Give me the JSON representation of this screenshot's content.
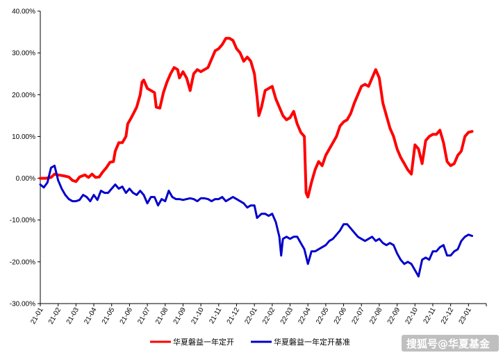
{
  "chart_data": {
    "type": "line",
    "ylim": [
      -30,
      40
    ],
    "yticks": [
      -30,
      -20,
      -10,
      0,
      10,
      20,
      30,
      40
    ],
    "ytick_labels": [
      "-30.00%",
      "-20.00%",
      "-10.00%",
      "0.00%",
      "10.00%",
      "20.00%",
      "30.00%",
      "40.00%"
    ],
    "x_tick_labels": [
      "21-01",
      "21-02",
      "21-03",
      "21-04",
      "21-05",
      "21-06",
      "21-07",
      "21-08",
      "21-09",
      "21-10",
      "21-11",
      "21-12",
      "22-01",
      "22-02",
      "22-03",
      "22-04",
      "22-05",
      "22-06",
      "22-07",
      "22-08",
      "22-09",
      "22-10",
      "22-11",
      "22-12",
      "23-01"
    ],
    "grid": false,
    "legend_position": "bottom",
    "series": [
      {
        "name": "华夏磐益一年定开",
        "color": "#ff0000",
        "points": [
          [
            0,
            0
          ],
          [
            0.3,
            0
          ],
          [
            0.6,
            0.2
          ],
          [
            0.8,
            1.0
          ],
          [
            1.0,
            0.8
          ],
          [
            1.3,
            0.6
          ],
          [
            1.6,
            0.3
          ],
          [
            1.8,
            -0.5
          ],
          [
            2.0,
            -0.8
          ],
          [
            2.2,
            0.3
          ],
          [
            2.5,
            0.8
          ],
          [
            2.7,
            0.2
          ],
          [
            2.9,
            1.0
          ],
          [
            3.1,
            0.2
          ],
          [
            3.3,
            0.3
          ],
          [
            3.5,
            1.5
          ],
          [
            3.7,
            2.5
          ],
          [
            3.9,
            3.8
          ],
          [
            4.1,
            4.0
          ],
          [
            4.2,
            6.5
          ],
          [
            4.4,
            8.5
          ],
          [
            4.6,
            8.5
          ],
          [
            4.8,
            10.0
          ],
          [
            4.9,
            13.0
          ],
          [
            5.1,
            14.5
          ],
          [
            5.4,
            17.0
          ],
          [
            5.6,
            20.0
          ],
          [
            5.7,
            23.0
          ],
          [
            5.8,
            23.5
          ],
          [
            6.0,
            21.5
          ],
          [
            6.2,
            21.0
          ],
          [
            6.4,
            20.5
          ],
          [
            6.5,
            17.0
          ],
          [
            6.7,
            16.8
          ],
          [
            6.9,
            20.5
          ],
          [
            7.1,
            23.0
          ],
          [
            7.3,
            25.0
          ],
          [
            7.5,
            26.5
          ],
          [
            7.7,
            26.0
          ],
          [
            7.8,
            24.0
          ],
          [
            8.0,
            25.5
          ],
          [
            8.2,
            24.0
          ],
          [
            8.4,
            21.0
          ],
          [
            8.6,
            25.0
          ],
          [
            8.8,
            26.0
          ],
          [
            9.0,
            25.5
          ],
          [
            9.2,
            26.0
          ],
          [
            9.4,
            26.5
          ],
          [
            9.6,
            28.5
          ],
          [
            9.8,
            30.5
          ],
          [
            10.0,
            31.0
          ],
          [
            10.2,
            32.0
          ],
          [
            10.4,
            33.5
          ],
          [
            10.6,
            33.5
          ],
          [
            10.8,
            33.0
          ],
          [
            11.0,
            31.0
          ],
          [
            11.2,
            30.0
          ],
          [
            11.4,
            28.0
          ],
          [
            11.6,
            29.0
          ],
          [
            11.8,
            28.0
          ],
          [
            12.0,
            25.0
          ],
          [
            12.15,
            19.5
          ],
          [
            12.25,
            15.0
          ],
          [
            12.4,
            17.0
          ],
          [
            12.6,
            21.0
          ],
          [
            12.8,
            21.5
          ],
          [
            13.0,
            22.0
          ],
          [
            13.2,
            19.0
          ],
          [
            13.4,
            17.0
          ],
          [
            13.6,
            15.0
          ],
          [
            13.8,
            14.0
          ],
          [
            14.0,
            14.5
          ],
          [
            14.2,
            16.0
          ],
          [
            14.4,
            13.0
          ],
          [
            14.6,
            11.0
          ],
          [
            14.8,
            10.0
          ],
          [
            14.9,
            -3.5
          ],
          [
            15.0,
            -4.5
          ],
          [
            15.2,
            -1.0
          ],
          [
            15.4,
            2.0
          ],
          [
            15.6,
            4.0
          ],
          [
            15.8,
            3.0
          ],
          [
            16.0,
            5.5
          ],
          [
            16.2,
            7.0
          ],
          [
            16.4,
            8.5
          ],
          [
            16.6,
            10.0
          ],
          [
            16.8,
            12.5
          ],
          [
            17.0,
            13.5
          ],
          [
            17.2,
            14.0
          ],
          [
            17.4,
            15.5
          ],
          [
            17.6,
            18.0
          ],
          [
            17.8,
            20.0
          ],
          [
            18.0,
            22.0
          ],
          [
            18.2,
            22.5
          ],
          [
            18.4,
            22.0
          ],
          [
            18.6,
            24.0
          ],
          [
            18.8,
            26.0
          ],
          [
            19.0,
            24.0
          ],
          [
            19.2,
            18.0
          ],
          [
            19.4,
            15.0
          ],
          [
            19.6,
            12.0
          ],
          [
            19.8,
            10.0
          ],
          [
            20.0,
            7.0
          ],
          [
            20.2,
            5.0
          ],
          [
            20.4,
            3.5
          ],
          [
            20.6,
            2.0
          ],
          [
            20.8,
            1.0
          ],
          [
            21.0,
            8.0
          ],
          [
            21.2,
            7.0
          ],
          [
            21.4,
            3.5
          ],
          [
            21.6,
            9.0
          ],
          [
            21.8,
            10.0
          ],
          [
            22.0,
            10.5
          ],
          [
            22.2,
            10.5
          ],
          [
            22.4,
            11.5
          ],
          [
            22.6,
            8.5
          ],
          [
            22.8,
            4.0
          ],
          [
            23.0,
            3.0
          ],
          [
            23.2,
            3.5
          ],
          [
            23.4,
            5.5
          ],
          [
            23.6,
            6.5
          ],
          [
            23.8,
            10.0
          ],
          [
            24.0,
            11.0
          ],
          [
            24.2,
            11.2
          ]
        ]
      },
      {
        "name": "华夏磐益一年定开基准",
        "color": "#0000cc",
        "points": [
          [
            0,
            -1.5
          ],
          [
            0.2,
            -2.2
          ],
          [
            0.4,
            -1.0
          ],
          [
            0.6,
            2.5
          ],
          [
            0.8,
            3.0
          ],
          [
            1.0,
            -0.5
          ],
          [
            1.2,
            -2.5
          ],
          [
            1.4,
            -4.0
          ],
          [
            1.6,
            -5.0
          ],
          [
            1.8,
            -5.5
          ],
          [
            2.0,
            -5.5
          ],
          [
            2.2,
            -5.2
          ],
          [
            2.4,
            -4.0
          ],
          [
            2.6,
            -4.5
          ],
          [
            2.8,
            -5.5
          ],
          [
            3.0,
            -4.0
          ],
          [
            3.2,
            -5.2
          ],
          [
            3.4,
            -3.0
          ],
          [
            3.6,
            -3.5
          ],
          [
            3.8,
            -3.5
          ],
          [
            4.0,
            -2.5
          ],
          [
            4.2,
            -1.5
          ],
          [
            4.4,
            -2.5
          ],
          [
            4.6,
            -2.0
          ],
          [
            4.8,
            -3.5
          ],
          [
            5.0,
            -2.5
          ],
          [
            5.2,
            -3.5
          ],
          [
            5.4,
            -4.0
          ],
          [
            5.6,
            -3.0
          ],
          [
            5.8,
            -4.0
          ],
          [
            6.0,
            -6.0
          ],
          [
            6.2,
            -4.5
          ],
          [
            6.4,
            -4.5
          ],
          [
            6.6,
            -6.5
          ],
          [
            6.8,
            -5.0
          ],
          [
            7.0,
            -5.5
          ],
          [
            7.2,
            -3.0
          ],
          [
            7.4,
            -4.5
          ],
          [
            7.6,
            -5.0
          ],
          [
            7.8,
            -5.0
          ],
          [
            8.0,
            -5.2
          ],
          [
            8.2,
            -5.0
          ],
          [
            8.4,
            -4.8
          ],
          [
            8.6,
            -5.0
          ],
          [
            8.8,
            -5.5
          ],
          [
            9.0,
            -4.8
          ],
          [
            9.2,
            -4.8
          ],
          [
            9.4,
            -5.0
          ],
          [
            9.6,
            -5.5
          ],
          [
            9.8,
            -5.0
          ],
          [
            10.0,
            -5.0
          ],
          [
            10.2,
            -4.5
          ],
          [
            10.4,
            -5.5
          ],
          [
            10.6,
            -5.0
          ],
          [
            10.8,
            -4.5
          ],
          [
            11.0,
            -5.0
          ],
          [
            11.2,
            -5.5
          ],
          [
            11.4,
            -6.0
          ],
          [
            11.6,
            -7.0
          ],
          [
            11.8,
            -6.5
          ],
          [
            12.0,
            -6.5
          ],
          [
            12.15,
            -9.5
          ],
          [
            12.4,
            -8.5
          ],
          [
            12.6,
            -8.5
          ],
          [
            12.8,
            -9.0
          ],
          [
            13.0,
            -8.5
          ],
          [
            13.2,
            -10.5
          ],
          [
            13.4,
            -14.0
          ],
          [
            13.5,
            -18.5
          ],
          [
            13.6,
            -14.5
          ],
          [
            13.8,
            -14.0
          ],
          [
            14.0,
            -14.5
          ],
          [
            14.2,
            -14.0
          ],
          [
            14.4,
            -14.0
          ],
          [
            14.6,
            -15.5
          ],
          [
            14.8,
            -17.0
          ],
          [
            15.0,
            -20.5
          ],
          [
            15.2,
            -17.5
          ],
          [
            15.4,
            -17.5
          ],
          [
            15.6,
            -17.0
          ],
          [
            15.8,
            -16.5
          ],
          [
            16.0,
            -16.0
          ],
          [
            16.2,
            -15.0
          ],
          [
            16.4,
            -14.5
          ],
          [
            16.6,
            -13.5
          ],
          [
            16.8,
            -12.5
          ],
          [
            17.0,
            -11.0
          ],
          [
            17.2,
            -11.0
          ],
          [
            17.4,
            -12.0
          ],
          [
            17.6,
            -13.0
          ],
          [
            17.8,
            -14.0
          ],
          [
            18.0,
            -14.5
          ],
          [
            18.2,
            -15.0
          ],
          [
            18.4,
            -14.5
          ],
          [
            18.6,
            -14.0
          ],
          [
            18.8,
            -15.0
          ],
          [
            19.0,
            -14.5
          ],
          [
            19.2,
            -15.5
          ],
          [
            19.4,
            -16.0
          ],
          [
            19.6,
            -15.5
          ],
          [
            19.8,
            -16.0
          ],
          [
            20.0,
            -18.0
          ],
          [
            20.2,
            -19.5
          ],
          [
            20.4,
            -20.5
          ],
          [
            20.6,
            -20.0
          ],
          [
            20.8,
            -20.5
          ],
          [
            21.0,
            -22.0
          ],
          [
            21.2,
            -23.5
          ],
          [
            21.4,
            -19.5
          ],
          [
            21.6,
            -19.0
          ],
          [
            21.8,
            -19.5
          ],
          [
            22.0,
            -17.5
          ],
          [
            22.2,
            -17.5
          ],
          [
            22.4,
            -16.5
          ],
          [
            22.6,
            -16.0
          ],
          [
            22.8,
            -18.5
          ],
          [
            23.0,
            -18.5
          ],
          [
            23.2,
            -17.5
          ],
          [
            23.4,
            -17.0
          ],
          [
            23.6,
            -15.0
          ],
          [
            23.8,
            -14.0
          ],
          [
            24.0,
            -13.5
          ],
          [
            24.2,
            -13.8
          ]
        ]
      }
    ]
  },
  "watermark": "搜狐号@华夏基金"
}
